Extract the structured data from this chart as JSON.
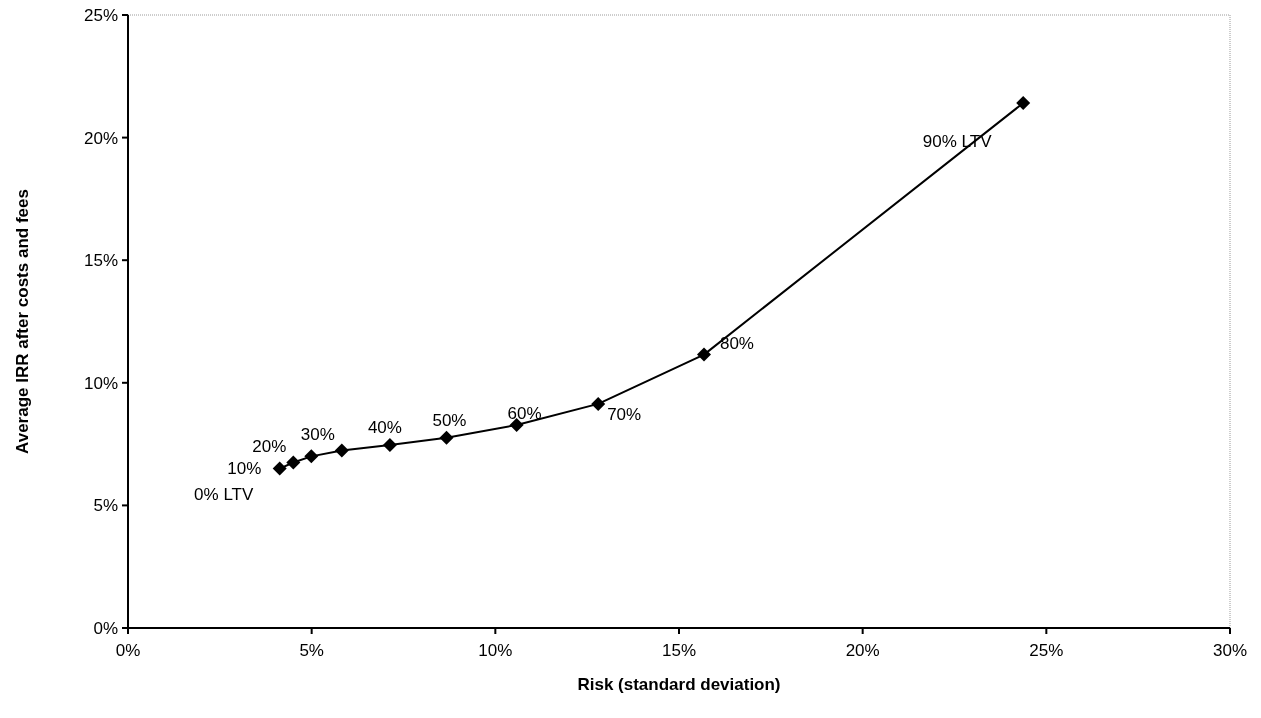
{
  "chart_data": {
    "type": "line",
    "xlabel": "Risk (standard deviation)",
    "ylabel": "Average IRR after costs and fees",
    "series": [
      {
        "color": "#000000",
        "x": [
          4.13,
          4.5,
          4.99,
          5.82,
          7.13,
          8.67,
          10.58,
          12.8,
          15.68,
          24.37
        ],
        "values": [
          6.5,
          6.75,
          7.0,
          7.24,
          7.46,
          7.76,
          8.28,
          9.14,
          11.15,
          21.41
        ]
      }
    ],
    "annotations": [
      {
        "text": "0% LTV",
        "x": 4.13,
        "y": 6.5
      },
      {
        "text": "10%",
        "x": 4.5,
        "y": 6.75
      },
      {
        "text": "20%",
        "x": 4.99,
        "y": 7.0
      },
      {
        "text": "30%",
        "x": 5.82,
        "y": 7.24
      },
      {
        "text": "40%",
        "x": 7.13,
        "y": 7.46
      },
      {
        "text": "50%",
        "x": 8.67,
        "y": 7.76
      },
      {
        "text": "60%",
        "x": 10.58,
        "y": 8.28
      },
      {
        "text": "70%",
        "x": 12.8,
        "y": 9.14
      },
      {
        "text": "80%",
        "x": 15.68,
        "y": 11.15
      },
      {
        "text": "90% LTV",
        "x": 24.37,
        "y": 21.41
      }
    ],
    "xlim": [
      0,
      30
    ],
    "xticks": [
      {
        "value": 0,
        "label": "0%"
      },
      {
        "value": 5,
        "label": "5%"
      },
      {
        "value": 10,
        "label": "10%"
      },
      {
        "value": 15,
        "label": "15%"
      },
      {
        "value": 20,
        "label": "20%"
      },
      {
        "value": 25,
        "label": "25%"
      },
      {
        "value": 30,
        "label": "30%"
      }
    ],
    "ylim": [
      0,
      25
    ],
    "yticks": [
      {
        "value": 0,
        "label": "0%"
      },
      {
        "value": 5,
        "label": "5%"
      },
      {
        "value": 10,
        "label": "10%"
      },
      {
        "value": 15,
        "label": "15%"
      },
      {
        "value": 20,
        "label": "20%"
      },
      {
        "value": 25,
        "label": "25%"
      }
    ],
    "grid": false,
    "marker": "diamond",
    "line_style": "solid"
  }
}
